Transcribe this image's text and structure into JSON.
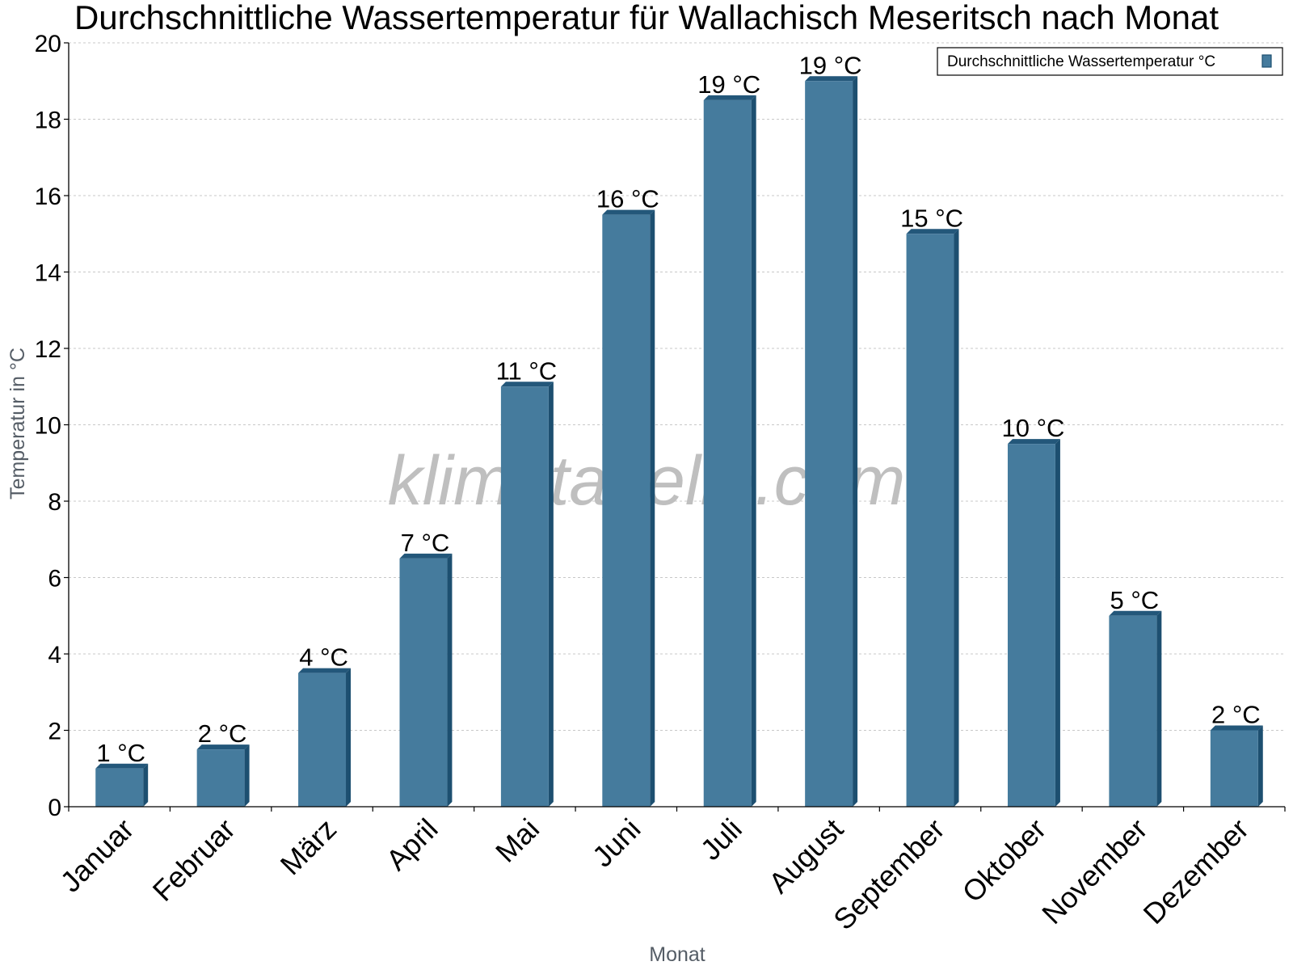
{
  "chart_data": {
    "type": "bar",
    "title": "Durchschnittliche Wassertemperatur für Wallachisch Meseritsch nach Monat",
    "xlabel": "Monat",
    "ylabel": "Temperatur in °C",
    "categories": [
      "Januar",
      "Februar",
      "März",
      "April",
      "Mai",
      "Juni",
      "Juli",
      "August",
      "September",
      "Oktober",
      "November",
      "Dezember"
    ],
    "series": [
      {
        "name": "Durchschnittliche Wassertemperatur °C",
        "values": [
          1,
          1.5,
          3.5,
          6.5,
          11,
          15.5,
          18.5,
          19,
          15,
          9.5,
          5,
          2
        ],
        "labels": [
          "1 °C",
          "2 °C",
          "4 °C",
          "7 °C",
          "11 °C",
          "16 °C",
          "19 °C",
          "19 °C",
          "15 °C",
          "10 °C",
          "5 °C",
          "2 °C"
        ]
      }
    ],
    "ylim": [
      0,
      20
    ],
    "yticks": [
      0,
      2,
      4,
      6,
      8,
      10,
      12,
      14,
      16,
      18,
      20
    ],
    "grid": true,
    "legend_position": "top-right",
    "colors": {
      "bar": "#457b9d",
      "bar_side": "#1d4f70",
      "bar_top": "#23577a",
      "grid": "#c8c8c8"
    },
    "watermark": "klimatabelle.com"
  }
}
